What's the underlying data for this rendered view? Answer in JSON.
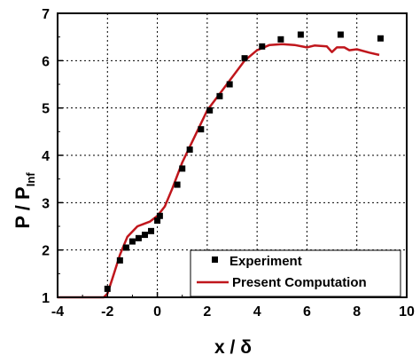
{
  "chart_data": {
    "type": "line",
    "xlabel": "x / δ",
    "ylabel_main": "P / P",
    "ylabel_sub": "Inf",
    "xlim": [
      -4,
      10
    ],
    "ylim": [
      1,
      7
    ],
    "xticks": [
      -4,
      -2,
      0,
      2,
      4,
      6,
      8,
      10
    ],
    "yticks": [
      1,
      2,
      3,
      4,
      5,
      6,
      7
    ],
    "grid": true,
    "legend_position": "bottom-right",
    "colors": {
      "experiment": "#000000",
      "computation": "#c0161c"
    },
    "series": [
      {
        "name": "Experiment",
        "style": "markers",
        "x": [
          -2.0,
          -1.5,
          -1.25,
          -1.0,
          -0.75,
          -0.5,
          -0.25,
          0.0,
          0.1,
          0.8,
          1.0,
          1.3,
          1.75,
          2.1,
          2.5,
          2.9,
          3.5,
          4.2,
          4.95,
          5.75,
          7.35,
          8.95
        ],
        "y": [
          1.18,
          1.78,
          2.05,
          2.18,
          2.25,
          2.32,
          2.4,
          2.62,
          2.72,
          3.38,
          3.72,
          4.12,
          4.55,
          4.95,
          5.25,
          5.5,
          6.05,
          6.3,
          6.45,
          6.55,
          6.55,
          6.47
        ]
      },
      {
        "name": "Present Computation",
        "style": "line",
        "x": [
          -4.0,
          -2.15,
          -2.0,
          -1.8,
          -1.5,
          -1.2,
          -0.8,
          -0.5,
          -0.3,
          0.0,
          0.3,
          0.6,
          1.0,
          1.5,
          2.0,
          2.5,
          3.0,
          3.5,
          4.0,
          4.5,
          5.0,
          5.5,
          6.0,
          6.3,
          6.8,
          7.0,
          7.2,
          7.5,
          7.7,
          8.0,
          8.5,
          8.9
        ],
        "y": [
          1.0,
          1.0,
          1.08,
          1.4,
          1.9,
          2.28,
          2.5,
          2.56,
          2.6,
          2.72,
          2.92,
          3.3,
          3.85,
          4.4,
          4.95,
          5.3,
          5.65,
          6.0,
          6.22,
          6.33,
          6.35,
          6.33,
          6.28,
          6.32,
          6.3,
          6.18,
          6.28,
          6.28,
          6.22,
          6.24,
          6.17,
          6.12
        ]
      }
    ]
  }
}
